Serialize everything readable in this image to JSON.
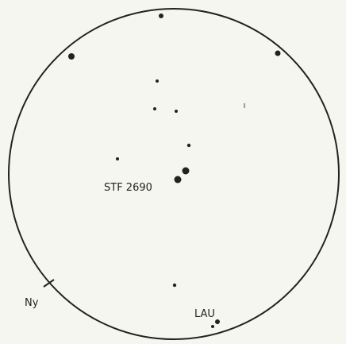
{
  "labels": {
    "main_star": "STF 2690",
    "direction": "Ny",
    "secondary": "LAU"
  }
}
